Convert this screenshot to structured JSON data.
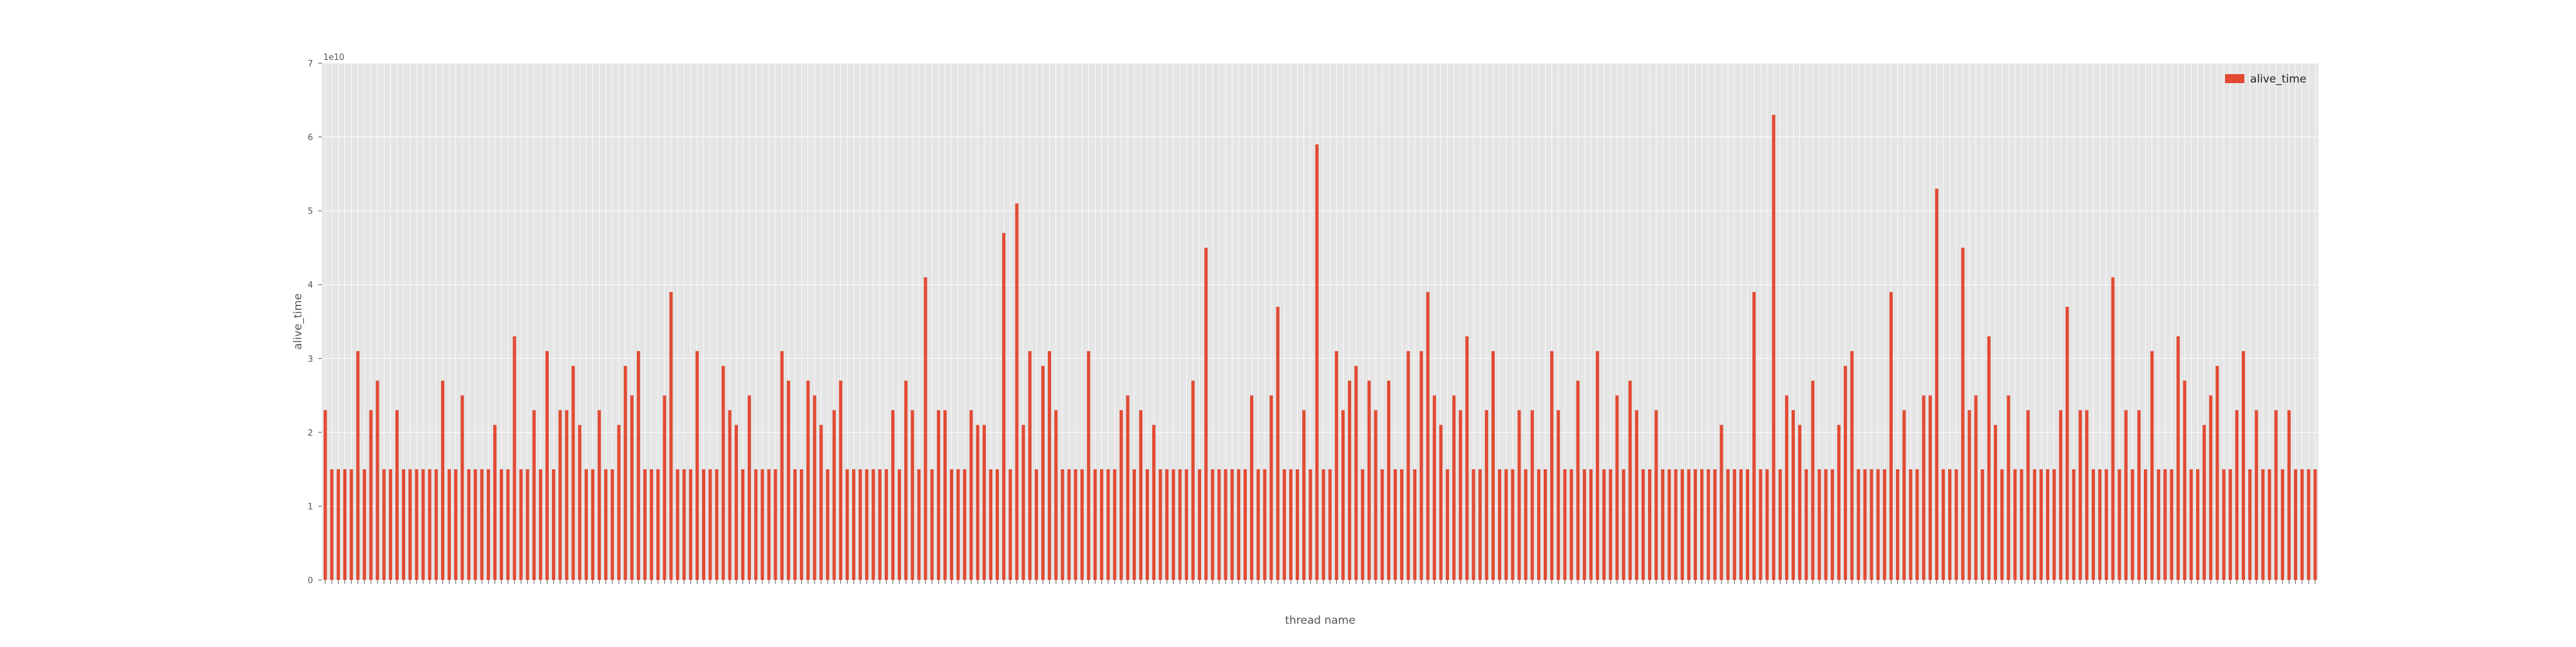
{
  "chart_data": {
    "type": "bar",
    "title": "",
    "xlabel": "thread name",
    "ylabel": "alive_time",
    "y_offset_text": "1e10",
    "ylim": [
      0,
      7
    ],
    "yticks": [
      0,
      1,
      2,
      3,
      4,
      5,
      6,
      7
    ],
    "grid": true,
    "legend_position": "top-right",
    "colors": {
      "bar": "#E24A33",
      "plot_background": "#E5E5E5",
      "grid": "#FFFFFF",
      "text": "#555555"
    },
    "series": [
      {
        "name": "alive_time",
        "values": [
          2.3,
          1.5,
          1.5,
          1.5,
          1.5,
          3.1,
          1.5,
          2.3,
          2.7,
          1.5,
          1.5,
          2.3,
          1.5,
          1.5,
          1.5,
          1.5,
          1.5,
          1.5,
          2.7,
          1.5,
          1.5,
          2.5,
          1.5,
          1.5,
          1.5,
          1.5,
          2.1,
          1.5,
          1.5,
          3.3,
          1.5,
          1.5,
          2.3,
          1.5,
          3.1,
          1.5,
          2.3,
          2.3,
          2.9,
          2.1,
          1.5,
          1.5,
          2.3,
          1.5,
          1.5,
          2.1,
          2.9,
          2.5,
          3.1,
          1.5,
          1.5,
          1.5,
          2.5,
          3.9,
          1.5,
          1.5,
          1.5,
          3.1,
          1.5,
          1.5,
          1.5,
          2.9,
          2.3,
          2.1,
          1.5,
          2.5,
          1.5,
          1.5,
          1.5,
          1.5,
          3.1,
          2.7,
          1.5,
          1.5,
          2.7,
          2.5,
          2.1,
          1.5,
          2.3,
          2.7,
          1.5,
          1.5,
          1.5,
          1.5,
          1.5,
          1.5,
          1.5,
          2.3,
          1.5,
          2.7,
          2.3,
          1.5,
          4.1,
          1.5,
          2.3,
          2.3,
          1.5,
          1.5,
          1.5,
          2.3,
          2.1,
          2.1,
          1.5,
          1.5,
          4.7,
          1.5,
          5.1,
          2.1,
          3.1,
          1.5,
          2.9,
          3.1,
          2.3,
          1.5,
          1.5,
          1.5,
          1.5,
          3.1,
          1.5,
          1.5,
          1.5,
          1.5,
          2.3,
          2.5,
          1.5,
          2.3,
          1.5,
          2.1,
          1.5,
          1.5,
          1.5,
          1.5,
          1.5,
          2.7,
          1.5,
          4.5,
          1.5,
          1.5,
          1.5,
          1.5,
          1.5,
          1.5,
          2.5,
          1.5,
          1.5,
          2.5,
          3.7,
          1.5,
          1.5,
          1.5,
          2.3,
          1.5,
          5.9,
          1.5,
          1.5,
          3.1,
          2.3,
          2.7,
          2.9,
          1.5,
          2.7,
          2.3,
          1.5,
          2.7,
          1.5,
          1.5,
          3.1,
          1.5,
          3.1,
          3.9,
          2.5,
          2.1,
          1.5,
          2.5,
          2.3,
          3.3,
          1.5,
          1.5,
          2.3,
          3.1,
          1.5,
          1.5,
          1.5,
          2.3,
          1.5,
          2.3,
          1.5,
          1.5,
          3.1,
          2.3,
          1.5,
          1.5,
          2.7,
          1.5,
          1.5,
          3.1,
          1.5,
          1.5,
          2.5,
          1.5,
          2.7,
          2.3,
          1.5,
          1.5,
          2.3,
          1.5,
          1.5,
          1.5,
          1.5,
          1.5,
          1.5,
          1.5,
          1.5,
          1.5,
          2.1,
          1.5,
          1.5,
          1.5,
          1.5,
          3.9,
          1.5,
          1.5,
          6.3,
          1.5,
          2.5,
          2.3,
          2.1,
          1.5,
          2.7,
          1.5,
          1.5,
          1.5,
          2.1,
          2.9,
          3.1,
          1.5,
          1.5,
          1.5,
          1.5,
          1.5,
          3.9,
          1.5,
          2.3,
          1.5,
          1.5,
          2.5,
          2.5,
          5.3,
          1.5,
          1.5,
          1.5,
          4.5,
          2.3,
          2.5,
          1.5,
          3.3,
          2.1,
          1.5,
          2.5,
          1.5,
          1.5,
          2.3,
          1.5,
          1.5,
          1.5,
          1.5,
          2.3,
          3.7,
          1.5,
          2.3,
          2.3,
          1.5,
          1.5,
          1.5,
          4.1,
          1.5,
          2.3,
          1.5,
          2.3,
          1.5,
          3.1,
          1.5,
          1.5,
          1.5,
          3.3,
          2.7,
          1.5,
          1.5,
          2.1,
          2.5,
          2.9,
          1.5,
          1.5,
          2.3,
          3.1,
          1.5,
          2.3,
          1.5,
          1.5,
          2.3,
          1.5,
          2.3,
          1.5,
          1.5,
          1.5,
          1.5
        ]
      }
    ]
  }
}
